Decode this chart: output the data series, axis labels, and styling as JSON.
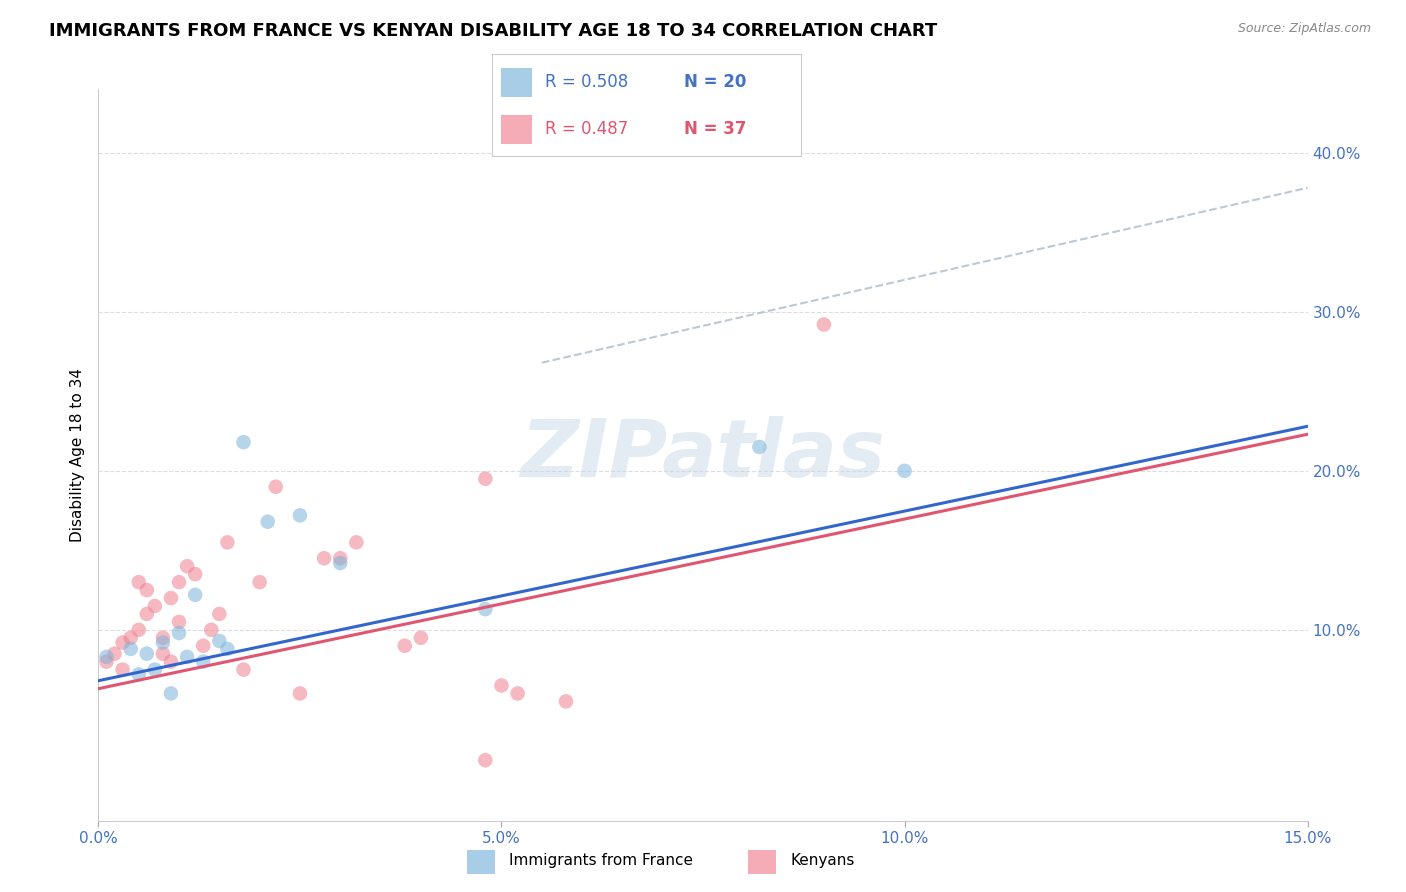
{
  "title": "IMMIGRANTS FROM FRANCE VS KENYAN DISABILITY AGE 18 TO 34 CORRELATION CHART",
  "source": "Source: ZipAtlas.com",
  "ylabel": "Disability Age 18 to 34",
  "xlim": [
    0.0,
    0.15
  ],
  "ylim": [
    -0.02,
    0.44
  ],
  "xtick_vals": [
    0.0,
    0.05,
    0.1,
    0.15
  ],
  "xtick_labels": [
    "0.0%",
    "5.0%",
    "10.0%",
    "15.0%"
  ],
  "ytick_vals": [
    0.1,
    0.2,
    0.3,
    0.4
  ],
  "ytick_labels": [
    "10.0%",
    "20.0%",
    "30.0%",
    "40.0%"
  ],
  "watermark": "ZIPatlas",
  "legend_france_r": "R = 0.508",
  "legend_france_n": "N = 20",
  "legend_kenya_r": "R = 0.487",
  "legend_kenya_n": "N = 37",
  "france_color": "#7ab3d9",
  "kenya_color": "#f08090",
  "france_scatter_x": [
    0.001,
    0.004,
    0.005,
    0.006,
    0.007,
    0.008,
    0.009,
    0.01,
    0.011,
    0.012,
    0.013,
    0.015,
    0.016,
    0.018,
    0.021,
    0.025,
    0.03,
    0.048,
    0.082,
    0.1
  ],
  "france_scatter_y": [
    0.083,
    0.088,
    0.072,
    0.085,
    0.075,
    0.092,
    0.06,
    0.098,
    0.083,
    0.122,
    0.08,
    0.093,
    0.088,
    0.218,
    0.168,
    0.172,
    0.142,
    0.113,
    0.215,
    0.2
  ],
  "kenya_scatter_x": [
    0.001,
    0.002,
    0.003,
    0.003,
    0.004,
    0.005,
    0.005,
    0.006,
    0.006,
    0.007,
    0.008,
    0.008,
    0.009,
    0.009,
    0.01,
    0.01,
    0.011,
    0.012,
    0.013,
    0.014,
    0.015,
    0.016,
    0.018,
    0.02,
    0.022,
    0.025,
    0.028,
    0.03,
    0.032,
    0.038,
    0.04,
    0.048,
    0.05,
    0.052,
    0.058,
    0.09,
    0.048
  ],
  "kenya_scatter_y": [
    0.08,
    0.085,
    0.092,
    0.075,
    0.095,
    0.13,
    0.1,
    0.125,
    0.11,
    0.115,
    0.085,
    0.095,
    0.08,
    0.12,
    0.13,
    0.105,
    0.14,
    0.135,
    0.09,
    0.1,
    0.11,
    0.155,
    0.075,
    0.13,
    0.19,
    0.06,
    0.145,
    0.145,
    0.155,
    0.09,
    0.095,
    0.195,
    0.065,
    0.06,
    0.055,
    0.292,
    0.018
  ],
  "france_line_x": [
    0.0,
    0.15
  ],
  "france_line_y": [
    0.068,
    0.228
  ],
  "kenya_line_x": [
    0.0,
    0.15
  ],
  "kenya_line_y": [
    0.068,
    0.228
  ],
  "dashed_line_x": [
    0.055,
    0.15
  ],
  "dashed_line_y": [
    0.268,
    0.378
  ],
  "grid_color": "#dddddd",
  "axis_color": "#4472C4",
  "title_fontsize": 13,
  "label_fontsize": 11,
  "tick_fontsize": 11
}
